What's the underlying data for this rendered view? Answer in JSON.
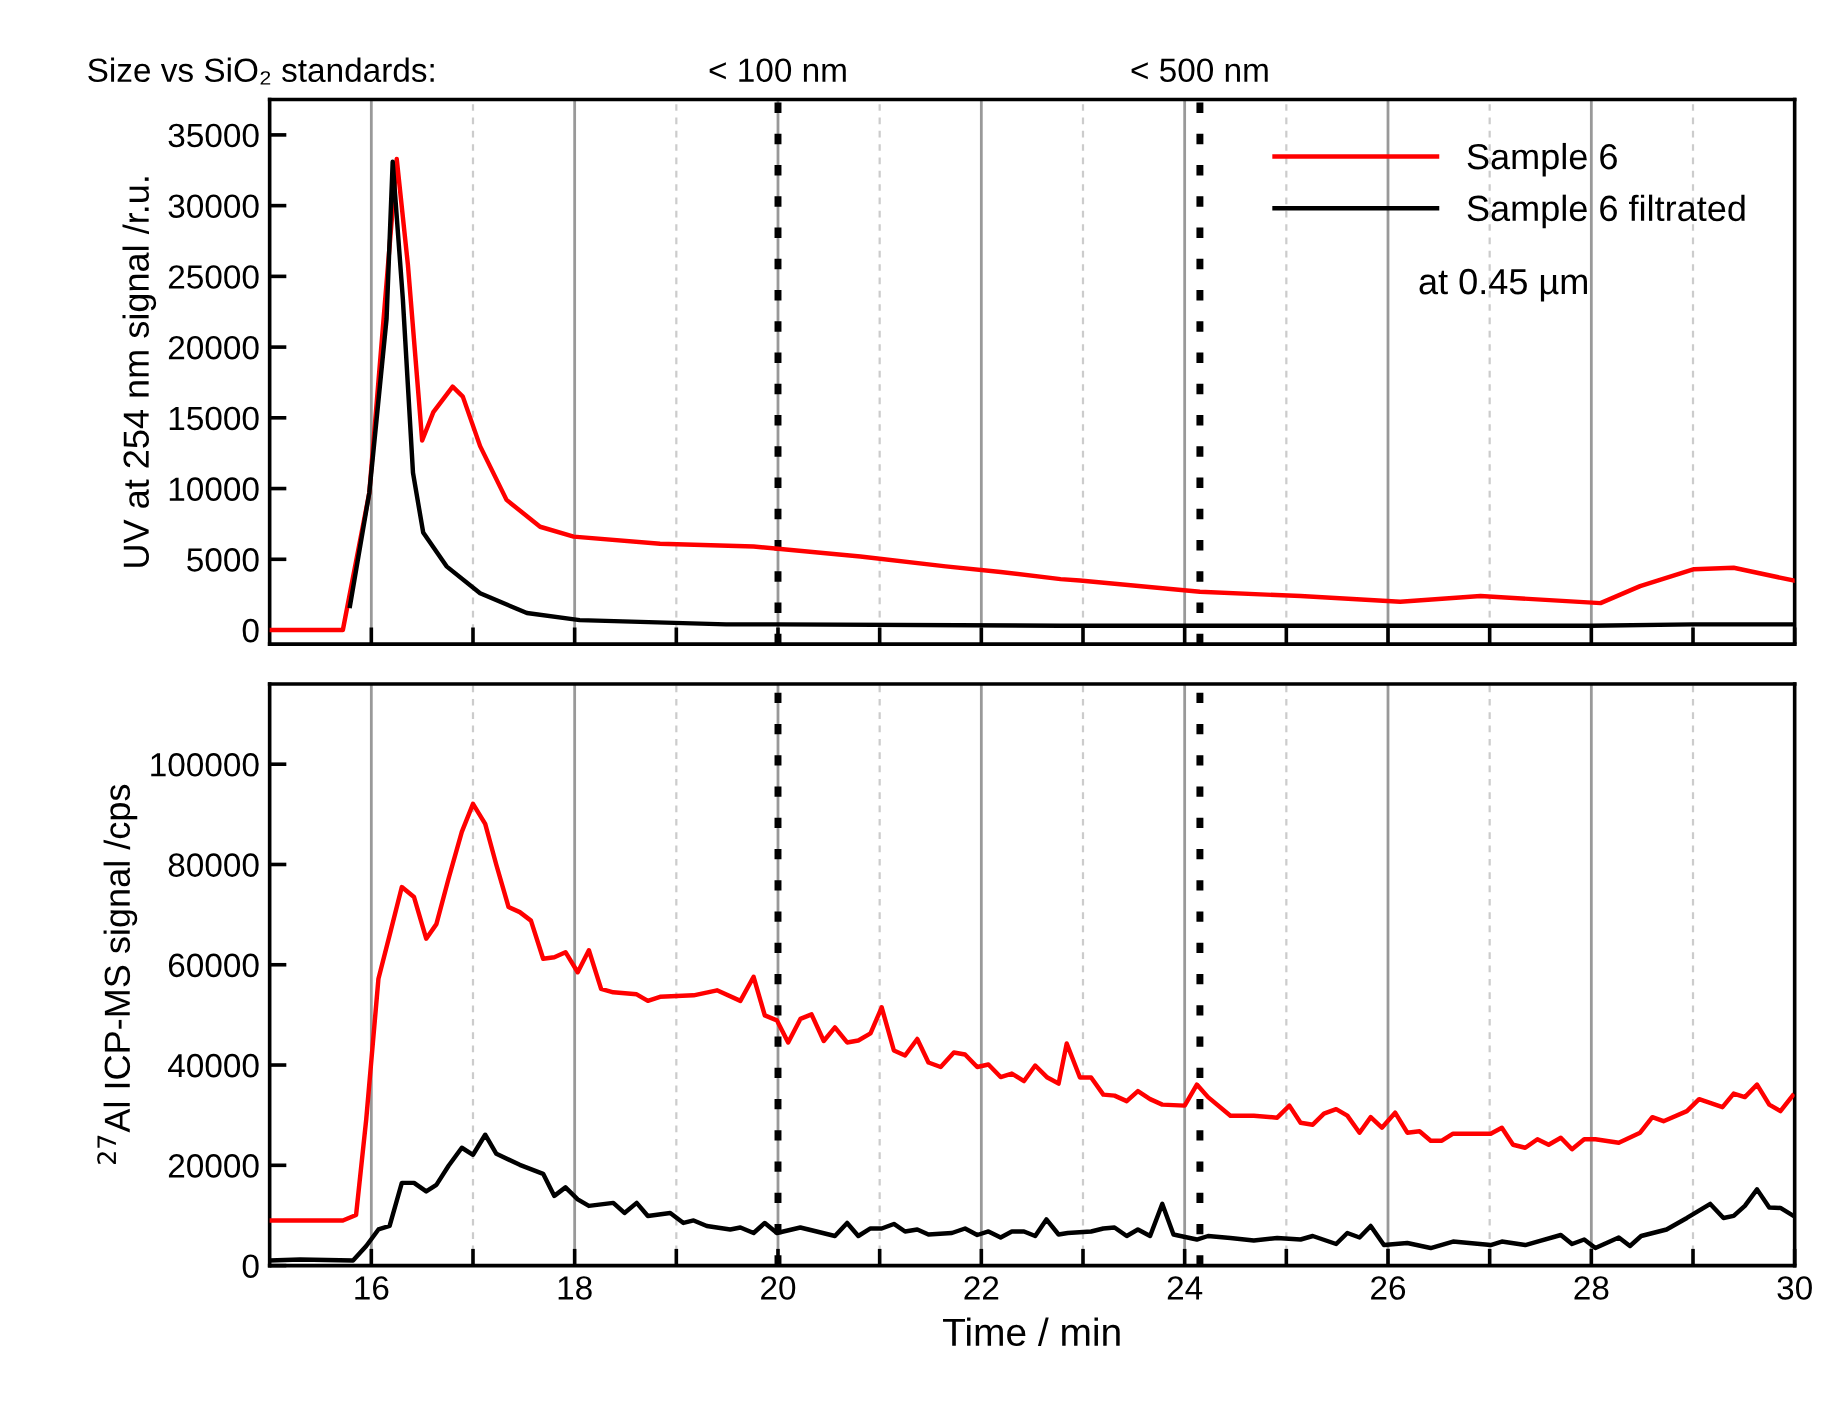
{
  "chart_data": [
    {
      "type": "line",
      "title": "Size vs SiO₂ standards:",
      "ylabel": "UV at 254 nm signal /r.u.",
      "xlim": [
        15,
        30
      ],
      "ylim": [
        -1000,
        37500
      ],
      "xticks": [
        16,
        {
          "value": 17,
          "label": null
        },
        18,
        {
          "value": 19,
          "label": null
        },
        20,
        {
          "value": 21,
          "label": null
        },
        22,
        {
          "value": 23,
          "label": null
        },
        24,
        {
          "value": 25,
          "label": null
        },
        26,
        {
          "value": 27,
          "label": null
        },
        28,
        {
          "value": 29,
          "label": null
        },
        30
      ],
      "yticks": [
        0,
        5000,
        10000,
        15000,
        20000,
        25000,
        30000,
        35000
      ],
      "tick_labels": "y",
      "grid": "x",
      "legend": "top right",
      "line_style": "solid",
      "annotations": [
        "at 0.45 µm"
      ],
      "ref_lines": [
        {
          "axis": "x",
          "value": 20,
          "label": "< 100 nm",
          "color": "#000000",
          "line_style": "dotted"
        },
        {
          "axis": "x",
          "value": 24.15,
          "label": "< 500 nm",
          "color": "#000000",
          "line_style": "dotted"
        }
      ],
      "series": [
        {
          "name": "Sample 6",
          "color": "#ff0000",
          "x": [
            15,
            15.72,
            15.98,
            16.25,
            16.36,
            16.5,
            16.61,
            16.8,
            16.9,
            17.07,
            17.33,
            17.66,
            17.99,
            18.84,
            19.76,
            20.81,
            21.65,
            22.19,
            22.78,
            22.97,
            24.15,
            25.14,
            26.12,
            26.91,
            28.09,
            28.48,
            29.01,
            29.4,
            29.99
          ],
          "values": [
            0,
            0,
            9700,
            33300,
            25800,
            13400,
            15400,
            17200,
            16500,
            13000,
            9200,
            7300,
            6600,
            6100,
            5900,
            5200,
            4500,
            4100,
            3600,
            3500,
            2700,
            2400,
            2000,
            2400,
            1900,
            3100,
            4300,
            4400,
            3500
          ]
        },
        {
          "name": "Sample 6 filtrated",
          "color": "#000000",
          "x": [
            15.79,
            15.98,
            16.15,
            16.21,
            16.31,
            16.41,
            16.51,
            16.74,
            17.07,
            17.53,
            18.05,
            19.49,
            20,
            22.78,
            24,
            28,
            29,
            30
          ],
          "values": [
            1700,
            9700,
            22000,
            33100,
            23400,
            11100,
            6900,
            4500,
            2600,
            1200,
            700,
            400,
            400,
            300,
            300,
            300,
            400,
            400
          ]
        }
      ]
    },
    {
      "type": "line",
      "ylabel": "$^{27}$Al ICP-MS signal /cps",
      "xlabel": "Time / min",
      "xlim": [
        15,
        30
      ],
      "ylim": [
        0,
        116000
      ],
      "xticks": [
        16,
        {
          "value": 17,
          "label": null
        },
        18,
        {
          "value": 19,
          "label": null
        },
        20,
        {
          "value": 21,
          "label": null
        },
        22,
        {
          "value": 23,
          "label": null
        },
        24,
        {
          "value": 25,
          "label": null
        },
        26,
        {
          "value": 27,
          "label": null
        },
        28,
        {
          "value": 29,
          "label": null
        },
        30
      ],
      "yticks": [
        0,
        20000,
        40000,
        60000,
        80000,
        100000
      ],
      "grid": "x",
      "line_style": "solid",
      "ref_lines": [
        {
          "axis": "x",
          "value": 20,
          "color": "#000000",
          "line_style": "dotted"
        },
        {
          "axis": "x",
          "value": 24.15,
          "color": "#000000",
          "line_style": "dotted"
        }
      ],
      "series": [
        {
          "color": "#ff0000",
          "x": [
            15,
            15.72,
            15.85,
            15.95,
            16.07,
            16.18,
            16.3,
            16.42,
            16.54,
            16.64,
            16.76,
            16.89,
            17.0,
            17.12,
            17.23,
            17.35,
            17.46,
            17.57,
            17.69,
            17.8,
            17.91,
            18.03,
            18.14,
            18.26,
            18.38,
            18.61,
            18.72,
            18.84,
            19.17,
            19.4,
            19.63,
            19.76,
            19.87,
            19.99,
            20.1,
            20.22,
            20.33,
            20.45,
            20.56,
            20.68,
            20.79,
            20.91,
            21.02,
            21.14,
            21.25,
            21.37,
            21.48,
            21.6,
            21.73,
            21.84,
            21.96,
            22.07,
            22.19,
            22.3,
            22.42,
            22.53,
            22.65,
            22.76,
            22.84,
            22.97,
            23.08,
            23.2,
            23.31,
            23.43,
            23.54,
            23.66,
            23.78,
            24.0,
            24.12,
            24.23,
            24.45,
            24.68,
            24.91,
            25.03,
            25.14,
            25.26,
            25.37,
            25.49,
            25.6,
            25.72,
            25.83,
            25.94,
            26.07,
            26.19,
            26.31,
            26.42,
            26.53,
            26.64,
            27.01,
            27.12,
            27.23,
            27.35,
            27.47,
            27.58,
            27.7,
            27.81,
            27.93,
            28.04,
            28.27,
            28.48,
            28.6,
            28.71,
            28.94,
            29.06,
            29.29,
            29.4,
            29.51,
            29.63,
            29.75,
            29.86,
            29.98
          ],
          "values": [
            9000,
            9000,
            10100,
            29200,
            57200,
            65900,
            75500,
            73500,
            65200,
            68100,
            77200,
            86500,
            92100,
            88100,
            79900,
            71500,
            70500,
            68800,
            61200,
            61500,
            62500,
            58500,
            62900,
            55200,
            54500,
            54100,
            52800,
            53600,
            53900,
            54900,
            52800,
            57600,
            49900,
            48900,
            44500,
            49200,
            50100,
            44800,
            47500,
            44500,
            44900,
            46300,
            51500,
            42900,
            41900,
            45200,
            40500,
            39600,
            42500,
            42100,
            39600,
            40100,
            37600,
            38300,
            36800,
            39900,
            37500,
            36300,
            44300,
            37500,
            37500,
            34100,
            33900,
            32800,
            34800,
            33200,
            32100,
            31900,
            36100,
            33600,
            29900,
            29900,
            29500,
            31900,
            28500,
            28100,
            30300,
            31200,
            29900,
            26500,
            29600,
            27500,
            30500,
            26500,
            26800,
            24900,
            24900,
            26300,
            26300,
            27500,
            24100,
            23500,
            25200,
            24100,
            25500,
            23200,
            25200,
            25200,
            24500,
            26500,
            29600,
            28800,
            30800,
            33200,
            31600,
            34300,
            33600,
            36100,
            32100,
            30800,
            33900
          ]
        },
        {
          "color": "#000000",
          "x": [
            15,
            15.3,
            15.82,
            15.95,
            16.07,
            16.18,
            16.3,
            16.42,
            16.54,
            16.64,
            16.76,
            16.89,
            17.0,
            17.12,
            17.23,
            17.46,
            17.69,
            17.8,
            17.91,
            18.03,
            18.14,
            18.38,
            18.49,
            18.61,
            18.72,
            18.94,
            19.07,
            19.17,
            19.3,
            19.53,
            19.63,
            19.76,
            19.87,
            19.99,
            20.22,
            20.56,
            20.68,
            20.79,
            20.91,
            21.02,
            21.14,
            21.25,
            21.37,
            21.48,
            21.71,
            21.84,
            21.96,
            22.07,
            22.19,
            22.3,
            22.42,
            22.53,
            22.64,
            22.76,
            22.85,
            23.08,
            23.2,
            23.31,
            23.43,
            23.54,
            23.66,
            23.78,
            23.89,
            24.12,
            24.23,
            24.45,
            24.68,
            24.91,
            25.14,
            25.26,
            25.49,
            25.6,
            25.72,
            25.83,
            25.96,
            26.19,
            26.42,
            26.64,
            27.01,
            27.12,
            27.35,
            27.47,
            27.7,
            27.81,
            27.93,
            28.04,
            28.27,
            28.38,
            28.49,
            28.74,
            28.94,
            29.17,
            29.3,
            29.4,
            29.51,
            29.63,
            29.75,
            29.86,
            29.99
          ],
          "values": [
            1000,
            1200,
            1000,
            3900,
            7200,
            7900,
            16500,
            16500,
            14800,
            16100,
            19900,
            23500,
            22100,
            26100,
            22300,
            20100,
            18300,
            13900,
            15600,
            13200,
            11900,
            12500,
            10500,
            12500,
            9900,
            10500,
            8500,
            9000,
            7900,
            7200,
            7600,
            6500,
            8500,
            6500,
            7600,
            5900,
            8500,
            5900,
            7400,
            7400,
            8300,
            6800,
            7200,
            6200,
            6500,
            7400,
            6100,
            6800,
            5600,
            6800,
            6800,
            5900,
            9200,
            6200,
            6500,
            6800,
            7400,
            7600,
            5900,
            7200,
            5900,
            12300,
            6200,
            5200,
            5900,
            5500,
            5000,
            5500,
            5200,
            5900,
            4300,
            6500,
            5600,
            7900,
            4100,
            4500,
            3500,
            4800,
            4100,
            4800,
            4100,
            4800,
            6100,
            4300,
            5200,
            3500,
            5600,
            3900,
            5900,
            7200,
            9500,
            12300,
            9500,
            9900,
            11900,
            15200,
            11600,
            11500,
            9900
          ]
        }
      ]
    }
  ]
}
